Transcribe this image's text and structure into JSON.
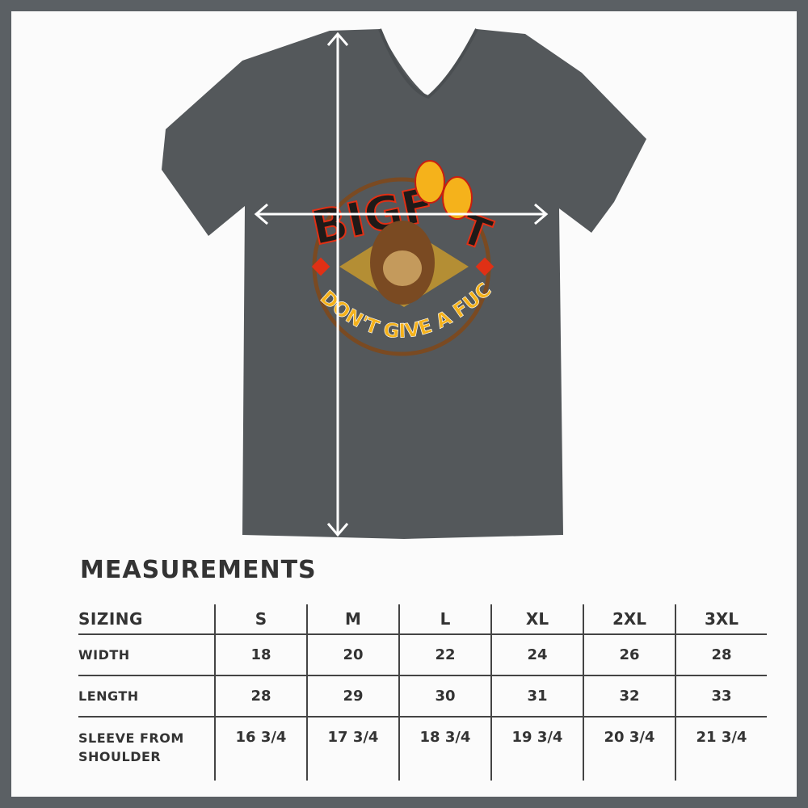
{
  "colors": {
    "frame": "#5b6064",
    "background": "#fbfbfb",
    "shirt": "#54585b",
    "text": "#333333",
    "graphic_yellow": "#f5b21b",
    "graphic_black": "#1e1a18"
  },
  "graphic": {
    "top_text_left": "BIGF",
    "top_text_right": "T",
    "bottom_text": "DON'T GIVE A FUCK"
  },
  "measurements": {
    "title": "MEASUREMENTS",
    "header_label": "SIZING",
    "sizes": [
      "S",
      "M",
      "L",
      "XL",
      "2XL",
      "3XL"
    ],
    "rows": [
      {
        "label": "WIDTH",
        "values": [
          "18",
          "20",
          "22",
          "24",
          "26",
          "28"
        ]
      },
      {
        "label": "LENGTH",
        "values": [
          "28",
          "29",
          "30",
          "31",
          "32",
          "33"
        ]
      },
      {
        "label_line1": "SLEEVE FROM",
        "label_line2": "SHOULDER",
        "values": [
          "16 3/4",
          "17 3/4",
          "18 3/4",
          "19 3/4",
          "20 3/4",
          "21 3/4"
        ]
      }
    ]
  }
}
